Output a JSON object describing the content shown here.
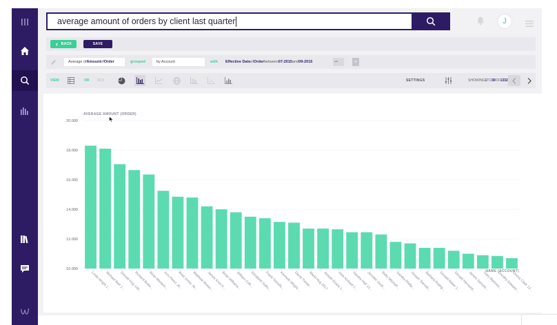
{
  "search": {
    "query": "average amount of orders by client last quarter"
  },
  "actions": {
    "back_label": "BACK",
    "save_label": "SAVE"
  },
  "query": {
    "measure_prefix": "Average of ",
    "measure_field": "Amount",
    "measure_of": " of ",
    "measure_entity": "Order",
    "grouped_label": "grouped",
    "group_by": "by Account",
    "with_label": "with",
    "filter_field": "Effective Date",
    "filter_of": " of ",
    "filter_entity": "Order",
    "filter_between": " between ",
    "filter_from": "07-2015",
    "filter_and": " and ",
    "filter_to": "09-2015",
    "more_label": "•••",
    "add_label": "+"
  },
  "view": {
    "view_label": "VIEW",
    "or_label": "OR",
    "number_label": "10.3",
    "settings_label": "SETTINGS",
    "showing_prefix": "SHOWING ",
    "showing_from": "1",
    "showing_to_word": " TO ",
    "showing_to": "30",
    "showing_of_word": " OF ",
    "showing_total": "1332"
  },
  "colors": {
    "nav": "#2d1c64",
    "accent": "#3bcf98",
    "bar": "#5cdbb0"
  },
  "chart_data": {
    "type": "bar",
    "ylabel": "AVERAGE AMOUNT (ORDER)",
    "xlabel": "NAME (ACCOUNT)",
    "ylim": [
      10000,
      20000
    ],
    "yticks": [
      "10.000",
      "12.000",
      "14.000",
      "16.000",
      "18.000",
      "20.000"
    ],
    "ytick_values": [
      10000,
      12000,
      14000,
      16000,
      18000,
      20000
    ],
    "grid": true,
    "categories": [
      "Linda Wright 1...",
      "Michael Barr 1...",
      "Donald Hug 130...",
      "Richard Bicke...",
      "Brian Mariann...",
      "Irvin Perez Jd...",
      "Brad Jones Jd...",
      "Matthew Brown...",
      "James Knot 6...",
      "Brian Williams...",
      "William Colli...",
      "Elizabeth Sulliv...",
      "Frank Sorrells...",
      "Kenneth Wright...",
      "David Turner...",
      "Maria Hug 2017",
      "Joseph Evans 1...",
      "Jose Kinkaid 1...",
      "Sandra Hall 13...",
      "Jennifer Gesk...",
      "Betty Mitchell...",
      "Sandra Phillip...",
      "Joseph Teeneb...",
      "Barbara Rodrig...",
      "Donald Baker 1...",
      "Donald Hernand...",
      "James Samulo...",
      "Gary Martinez...",
      "Dorothy Edward...",
      "Donna Clark 13..."
    ],
    "values": [
      18300,
      18100,
      17050,
      16650,
      16350,
      15250,
      14850,
      14800,
      14200,
      14000,
      13800,
      13500,
      13400,
      13150,
      13100,
      12700,
      12700,
      12650,
      12450,
      12450,
      12300,
      11800,
      11700,
      11400,
      11400,
      11200,
      11000,
      10900,
      10850,
      10700
    ]
  }
}
